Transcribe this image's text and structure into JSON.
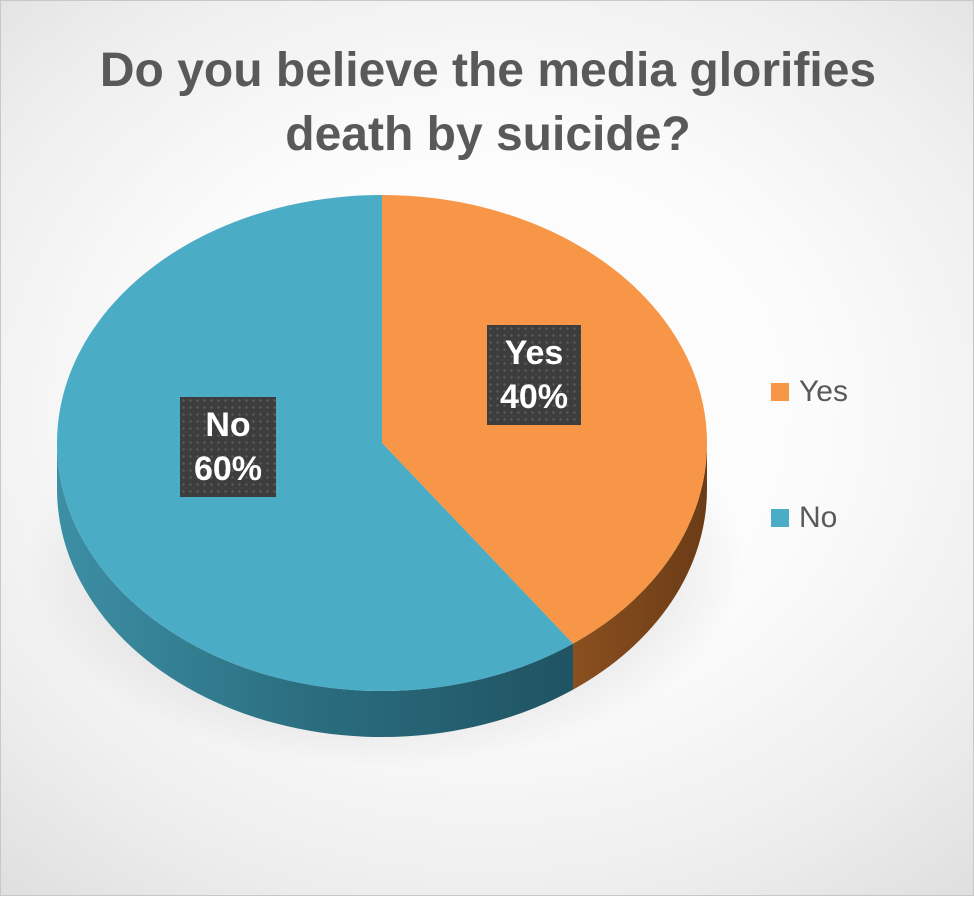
{
  "chart_data": {
    "type": "pie",
    "title": "Do you believe the media glorifies\ndeath by suicide?",
    "slices": [
      {
        "label": "Yes",
        "value": 40,
        "data_label": "Yes",
        "data_percent": "40%",
        "color": "#F79646"
      },
      {
        "label": "No",
        "value": 60,
        "data_label": "No",
        "data_percent": "60%",
        "color": "#4BACC6"
      }
    ],
    "legend": {
      "position": "right",
      "entries": [
        "Yes",
        "No"
      ]
    },
    "style": "3d"
  }
}
